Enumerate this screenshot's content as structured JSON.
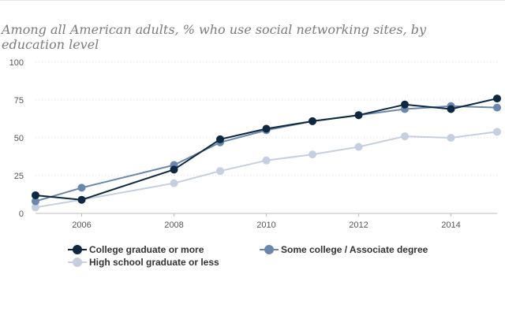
{
  "chart_data": {
    "type": "line",
    "title": "Among all American adults, % who use social networking sites, by education level",
    "xlabel": "",
    "ylabel": "",
    "xlim": [
      2005,
      2015
    ],
    "ylim": [
      0,
      100
    ],
    "x_ticks": [
      2006,
      2008,
      2010,
      2012,
      2014
    ],
    "y_ticks": [
      0,
      25,
      50,
      75,
      100
    ],
    "grid": true,
    "legend_position": "bottom",
    "series": [
      {
        "name": "College graduate or more",
        "color": "#0d2840",
        "x": [
          2005,
          2006,
          2008,
          2009,
          2010,
          2011,
          2012,
          2013,
          2014,
          2015
        ],
        "values": [
          12,
          9,
          29,
          49,
          56,
          61,
          65,
          72,
          69,
          76
        ]
      },
      {
        "name": "Some college / Associate degree",
        "color": "#6b87ad",
        "x": [
          2005,
          2006,
          2008,
          2009,
          2010,
          2011,
          2012,
          2013,
          2014,
          2015
        ],
        "values": [
          8,
          17,
          32,
          47,
          55,
          61,
          65,
          69,
          71,
          70
        ]
      },
      {
        "name": "High school graduate or less",
        "color": "#c5cfe0",
        "x": [
          2005,
          2006,
          2008,
          2009,
          2010,
          2011,
          2012,
          2013,
          2014,
          2015
        ],
        "values": [
          4,
          9,
          20,
          28,
          35,
          39,
          44,
          51,
          50,
          54
        ]
      }
    ]
  }
}
